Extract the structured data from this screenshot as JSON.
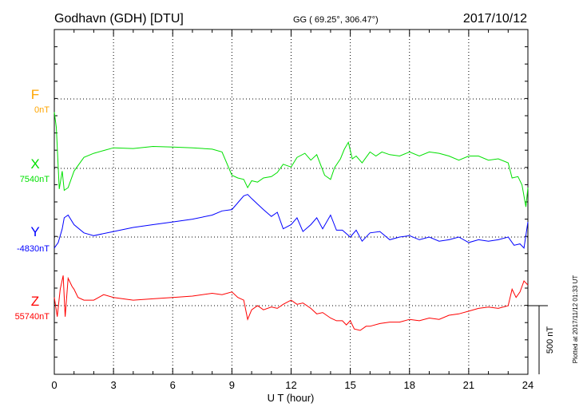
{
  "header": {
    "station": "Godhavn (GDH)  [DTU]",
    "coords": "GG ( 69.25°, 306.47°)",
    "date": "2017/10/12"
  },
  "scale_label": "500 nT",
  "plotted_note": "Plotted at 2017/11/12 01:33 UT",
  "colors": {
    "F": "#ffa500",
    "X": "#00e000",
    "Y": "#0000ff",
    "Z": "#ff0000"
  },
  "chart_data": {
    "type": "line",
    "title": "",
    "xlabel": "U T (hour)",
    "ylabel": "",
    "xlim": [
      0,
      24
    ],
    "x_ticks": [
      0,
      3,
      6,
      9,
      12,
      15,
      18,
      21,
      24
    ],
    "grid": true,
    "scale_bar_nT": 500,
    "series": [
      {
        "name": "F",
        "baseline": "0nT",
        "x": [],
        "values": []
      },
      {
        "name": "X",
        "baseline": "7540nT",
        "x": [
          0,
          0.1,
          0.25,
          0.4,
          0.5,
          0.7,
          1.0,
          1.5,
          2.0,
          2.5,
          3.0,
          4.0,
          5.0,
          6.0,
          7.0,
          8.0,
          8.5,
          9.0,
          9.3,
          9.6,
          9.8,
          10.0,
          10.3,
          10.6,
          11.0,
          11.3,
          11.6,
          12.0,
          12.3,
          12.7,
          13.0,
          13.3,
          13.7,
          14.0,
          14.2,
          14.5,
          14.7,
          14.9,
          15.1,
          15.3,
          15.6,
          16.0,
          16.3,
          16.6,
          17.0,
          17.5,
          18.0,
          18.5,
          19.0,
          19.5,
          20.0,
          20.5,
          21.0,
          21.5,
          22.0,
          22.5,
          23.0,
          23.2,
          23.5,
          23.7,
          23.9,
          24.0
        ],
        "values": [
          410,
          300,
          -150,
          -20,
          -160,
          -140,
          -20,
          80,
          110,
          130,
          150,
          145,
          160,
          155,
          150,
          140,
          120,
          -50,
          -70,
          -80,
          -140,
          -90,
          -100,
          -70,
          -60,
          -30,
          30,
          10,
          80,
          110,
          60,
          100,
          -50,
          -80,
          5,
          70,
          140,
          190,
          70,
          90,
          40,
          120,
          90,
          120,
          100,
          90,
          120,
          90,
          120,
          110,
          90,
          60,
          90,
          90,
          60,
          70,
          40,
          -70,
          -60,
          -120,
          -280,
          -140
        ]
      },
      {
        "name": "Y",
        "baseline": "-4830nT",
        "x": [
          0,
          0.2,
          0.4,
          0.5,
          0.7,
          1.0,
          1.5,
          2.0,
          3.0,
          4.0,
          5.0,
          6.0,
          7.0,
          8.0,
          8.5,
          9.0,
          9.3,
          9.6,
          9.8,
          10.0,
          10.3,
          10.6,
          11.0,
          11.3,
          11.6,
          12.0,
          12.3,
          12.6,
          13.0,
          13.3,
          13.6,
          14.0,
          14.3,
          14.6,
          15.0,
          15.3,
          15.6,
          16.0,
          16.5,
          17.0,
          17.5,
          18.0,
          18.5,
          19.0,
          19.5,
          20.0,
          20.5,
          21.0,
          21.5,
          22.0,
          22.5,
          23.0,
          23.3,
          23.6,
          23.8,
          24.0
        ],
        "values": [
          -80,
          -40,
          60,
          140,
          160,
          90,
          30,
          10,
          40,
          70,
          90,
          110,
          130,
          160,
          190,
          200,
          250,
          300,
          310,
          280,
          240,
          200,
          150,
          180,
          60,
          90,
          140,
          40,
          90,
          140,
          60,
          160,
          50,
          50,
          0,
          50,
          -30,
          30,
          40,
          -20,
          0,
          10,
          -20,
          0,
          -30,
          -20,
          0,
          -40,
          -20,
          -30,
          -20,
          0,
          -60,
          -50,
          -80,
          110
        ]
      },
      {
        "name": "Z",
        "baseline": "55740nT",
        "x": [
          0,
          0.15,
          0.3,
          0.45,
          0.55,
          0.7,
          0.9,
          1.0,
          1.2,
          1.5,
          2.0,
          2.5,
          3.0,
          4.0,
          5.0,
          6.0,
          7.0,
          8.0,
          8.5,
          9.0,
          9.3,
          9.6,
          9.8,
          10.0,
          10.3,
          10.6,
          11.0,
          11.3,
          11.6,
          12.0,
          12.3,
          12.6,
          13.0,
          13.3,
          13.6,
          14.0,
          14.3,
          14.6,
          14.8,
          15.0,
          15.2,
          15.5,
          15.8,
          16.0,
          16.5,
          17.0,
          17.5,
          18.0,
          18.5,
          19.0,
          19.5,
          20.0,
          20.5,
          21.0,
          21.5,
          22.0,
          22.5,
          23.0,
          23.2,
          23.4,
          23.6,
          23.8,
          24.0
        ],
        "values": [
          60,
          -80,
          120,
          220,
          -80,
          200,
          140,
          120,
          60,
          40,
          40,
          80,
          60,
          40,
          50,
          60,
          70,
          90,
          80,
          100,
          60,
          40,
          -100,
          -30,
          0,
          -30,
          -10,
          -20,
          10,
          40,
          10,
          20,
          -20,
          -60,
          -50,
          -90,
          -110,
          -110,
          -140,
          -110,
          -170,
          -180,
          -150,
          -150,
          -130,
          -120,
          -120,
          -100,
          -110,
          -90,
          -100,
          -70,
          -60,
          -40,
          -20,
          -10,
          -20,
          0,
          120,
          60,
          100,
          180,
          150
        ]
      }
    ]
  }
}
